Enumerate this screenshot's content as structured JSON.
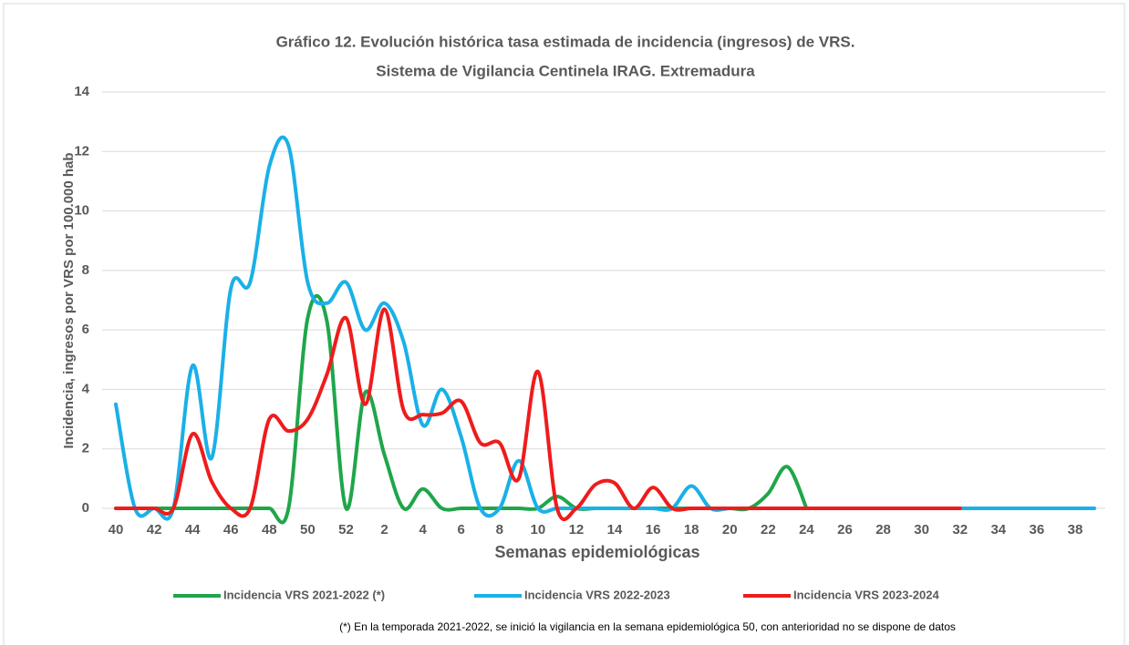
{
  "chart_data": {
    "type": "line",
    "title": [
      "Gráfico 12. Evolución histórica tasa estimada de incidencia (ingresos) de VRS.",
      "Sistema de Vigilancia Centinela IRAG. Extremadura"
    ],
    "y_label": "Incidencia, ingresos por VRS por  100.000 hab",
    "x_label": "Semanas epidemiológicas",
    "footnote": "(*) En la temporada 2021-2022, se inició la vigilancia en la semana epidemiológica 50, con anterioridad no se dispone de datos",
    "categories": [
      "40",
      null,
      "42",
      null,
      "44",
      null,
      "46",
      null,
      "48",
      null,
      "50",
      null,
      "52",
      null,
      "2",
      null,
      "4",
      null,
      "6",
      null,
      "8",
      null,
      "10",
      null,
      "12",
      null,
      "14",
      null,
      "16",
      null,
      "18",
      null,
      "20",
      null,
      "22",
      null,
      "24",
      null,
      "26",
      null,
      "28",
      null,
      "30",
      null,
      "32",
      null,
      "34",
      null,
      "36",
      null,
      "38",
      null
    ],
    "ylim": [
      0,
      14
    ],
    "yticks": [
      0,
      2,
      4,
      6,
      8,
      10,
      12,
      14
    ],
    "grid": true,
    "legend": "bottom",
    "series": [
      {
        "name": "Incidencia VRS 2021-2022 (*)",
        "color": "#1fa64a",
        "values": [
          0,
          0,
          0,
          0,
          0,
          0,
          0,
          0,
          0,
          0,
          6.4,
          6.3,
          0,
          3.9,
          1.8,
          0,
          0.65,
          0,
          0,
          0,
          0,
          0,
          0,
          0.4,
          0,
          0,
          0,
          0,
          0,
          0,
          0,
          0,
          0,
          0,
          0.5,
          1.4,
          0,
          null,
          null,
          null,
          null,
          null,
          null,
          null,
          null,
          null,
          null,
          null,
          null,
          null,
          null,
          null
        ]
      },
      {
        "name": "Incidencia VRS 2022-2023",
        "color": "#1ab0e8",
        "values": [
          3.5,
          0,
          0,
          0,
          4.8,
          1.7,
          7.4,
          7.6,
          11.5,
          12.2,
          7.6,
          6.9,
          7.6,
          6.0,
          6.9,
          5.6,
          2.8,
          4.0,
          2.4,
          0,
          0,
          1.6,
          0,
          0,
          0,
          0,
          0,
          0,
          0,
          0,
          0.75,
          0,
          0,
          0,
          0,
          0,
          0,
          0,
          0,
          0,
          0,
          0,
          0,
          0,
          0,
          0,
          0,
          0,
          0,
          0,
          0,
          0
        ]
      },
      {
        "name": "Incidencia VRS 2023-2024",
        "color": "#ee1c1c",
        "values": [
          0,
          0,
          0,
          0,
          2.5,
          0.9,
          0,
          0,
          3.0,
          2.6,
          3.0,
          4.5,
          6.4,
          3.5,
          6.7,
          3.3,
          3.15,
          3.2,
          3.6,
          2.2,
          2.2,
          1.0,
          4.6,
          0,
          0,
          0.8,
          0.85,
          0,
          0.7,
          0,
          0,
          0,
          0,
          0,
          0,
          0,
          0,
          0,
          0,
          0,
          0,
          0,
          0,
          0,
          0,
          null,
          null,
          null,
          null,
          null,
          null,
          null
        ]
      }
    ]
  }
}
